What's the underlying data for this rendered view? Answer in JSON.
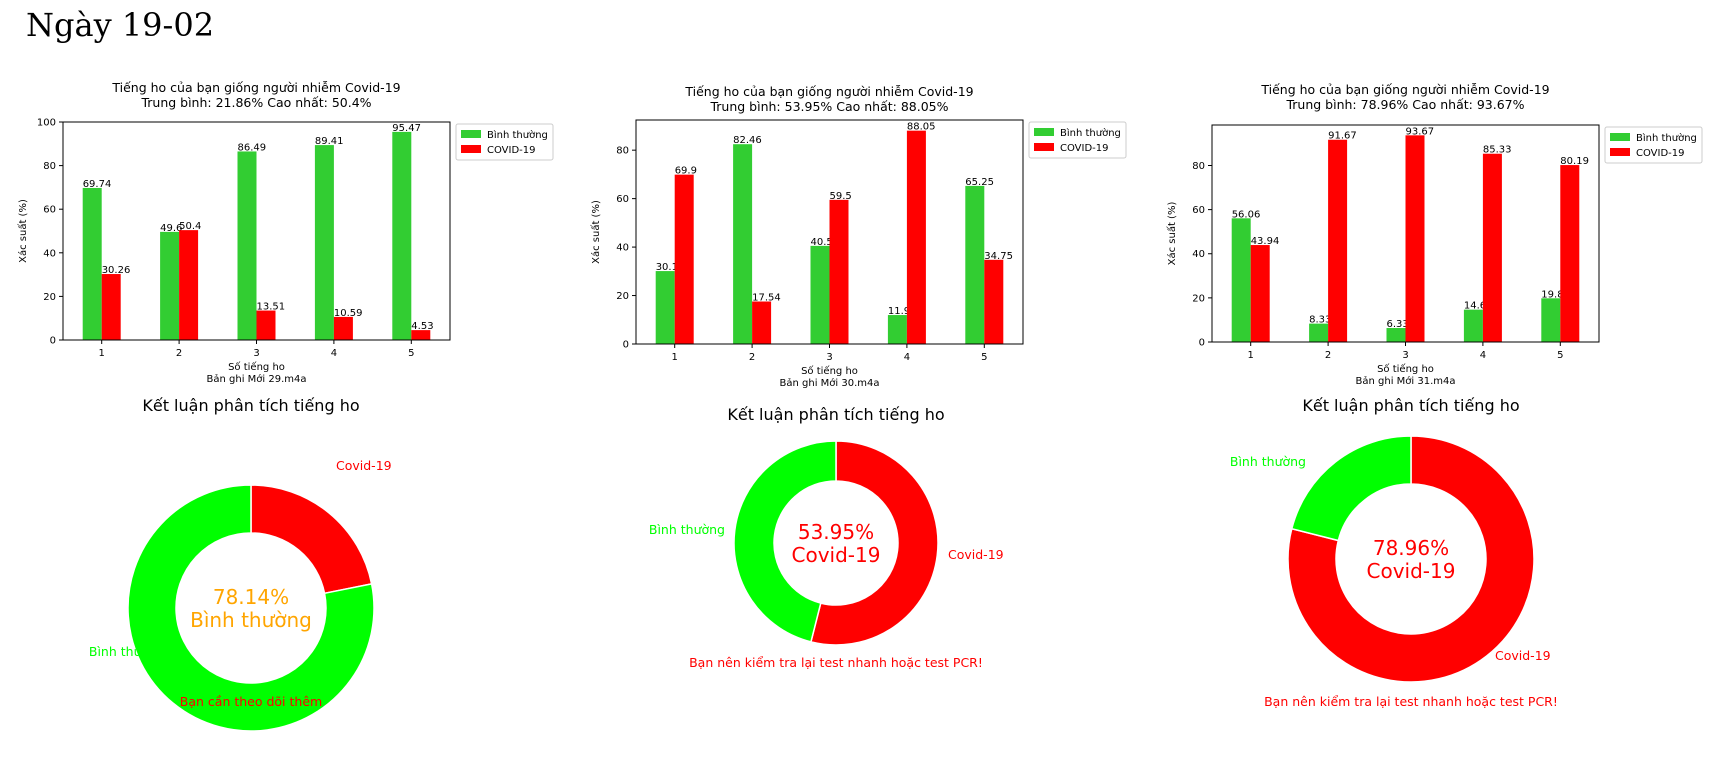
{
  "page": {
    "title": "Ngày 19-02"
  },
  "colors": {
    "normal_bar": "#32cd32",
    "covid_bar": "#ff0000",
    "normal_pie": "#00ff00",
    "covid_pie": "#ff0000",
    "center_normal": "#ffa500",
    "center_covid": "#ff0000",
    "note": "#ff0000"
  },
  "chart_data": [
    {
      "type": "bar",
      "title": "Tiếng ho của bạn giống người nhiễm Covid-19",
      "subtitle": "Trung bình: 21.86%   Cao nhất: 50.4%",
      "xlabel": "Số tiếng ho",
      "xlabel2": "Bản ghi Mới 29.m4a",
      "ylabel": "Xác suất (%)",
      "categories": [
        "1",
        "2",
        "3",
        "4",
        "5"
      ],
      "series": [
        {
          "name": "Bình thường",
          "values": [
            69.74,
            49.6,
            86.49,
            89.41,
            95.47
          ],
          "labels": [
            "69.74",
            "49.6",
            "86.49",
            "89.41",
            "95.47"
          ]
        },
        {
          "name": "COVID-19",
          "values": [
            30.26,
            50.4,
            13.51,
            10.59,
            4.53
          ],
          "labels": [
            "30.26",
            "50.4",
            "13.51",
            "10.59",
            "4.53"
          ]
        }
      ],
      "ylim": [
        0,
        100
      ],
      "yticks": [
        "0",
        "20",
        "40",
        "60",
        "80",
        "100"
      ],
      "legend": "top-right, outside"
    },
    {
      "type": "bar",
      "title": "Tiếng ho của bạn giống người nhiễm Covid-19",
      "subtitle": "Trung bình: 53.95%   Cao nhất: 88.05%",
      "xlabel": "Số tiếng ho",
      "xlabel2": "Bản ghi Mới 30.m4a",
      "ylabel": "Xác suất (%)",
      "categories": [
        "1",
        "2",
        "3",
        "4",
        "5"
      ],
      "series": [
        {
          "name": "Bình thường",
          "values": [
            30.1,
            82.46,
            40.5,
            11.95,
            65.25
          ],
          "labels": [
            "30.1",
            "82.46",
            "40.5",
            "11.95",
            "65.25"
          ]
        },
        {
          "name": "COVID-19",
          "values": [
            69.9,
            17.54,
            59.5,
            88.05,
            34.75
          ],
          "labels": [
            "69.9",
            "17.54",
            "59.5",
            "88.05",
            "34.75"
          ]
        }
      ],
      "ylim": [
        0,
        92.45
      ],
      "yticks": [
        "0",
        "20",
        "40",
        "60",
        "80"
      ],
      "legend": "top-right, outside"
    },
    {
      "type": "bar",
      "title": "Tiếng ho của bạn giống người nhiễm Covid-19",
      "subtitle": "Trung bình: 78.96%   Cao nhất: 93.67%",
      "xlabel": "Số tiếng ho",
      "xlabel2": "Bản ghi Mới 31.m4a",
      "ylabel": "Xác suất (%)",
      "categories": [
        "1",
        "2",
        "3",
        "4",
        "5"
      ],
      "series": [
        {
          "name": "Bình thường",
          "values": [
            56.06,
            8.33,
            6.33,
            14.67,
            19.81
          ],
          "labels": [
            "56.06",
            "8.33",
            "6.33",
            "14.67",
            "19.81"
          ]
        },
        {
          "name": "COVID-19",
          "values": [
            43.94,
            91.67,
            93.67,
            85.33,
            80.19
          ],
          "labels": [
            "43.94",
            "91.67",
            "93.67",
            "85.33",
            "80.19"
          ]
        }
      ],
      "ylim": [
        0,
        98.35
      ],
      "yticks": [
        "0",
        "20",
        "40",
        "60",
        "80"
      ],
      "legend": "top-right, outside"
    },
    {
      "type": "pie",
      "title": "Kết luận phân tích tiếng ho",
      "slices": [
        {
          "name": "Covid-19",
          "value": 21.86,
          "color": "#ff0000"
        },
        {
          "name": "Bình thường",
          "value": 78.14,
          "color": "#00ff00"
        }
      ],
      "center_text": [
        "78.14%",
        "Bình thường"
      ],
      "center_color": "#ffa500",
      "note": "Bạn cần theo dõi thêm"
    },
    {
      "type": "pie",
      "title": "Kết luận phân tích tiếng ho",
      "slices": [
        {
          "name": "Covid-19",
          "value": 53.95,
          "color": "#ff0000"
        },
        {
          "name": "Bình thường",
          "value": 46.05,
          "color": "#00ff00"
        }
      ],
      "center_text": [
        "53.95%",
        "Covid-19"
      ],
      "center_color": "#ff0000",
      "note": "Bạn nên kiểm tra lại test nhanh hoặc test PCR!"
    },
    {
      "type": "pie",
      "title": "Kết luận phân tích tiếng ho",
      "slices": [
        {
          "name": "Covid-19",
          "value": 78.96,
          "color": "#ff0000"
        },
        {
          "name": "Bình thường",
          "value": 21.04,
          "color": "#00ff00"
        }
      ],
      "center_text": [
        "78.96%",
        "Covid-19"
      ],
      "center_color": "#ff0000",
      "note": "Bạn nên kiểm tra lại test nhanh hoặc test PCR!"
    }
  ]
}
